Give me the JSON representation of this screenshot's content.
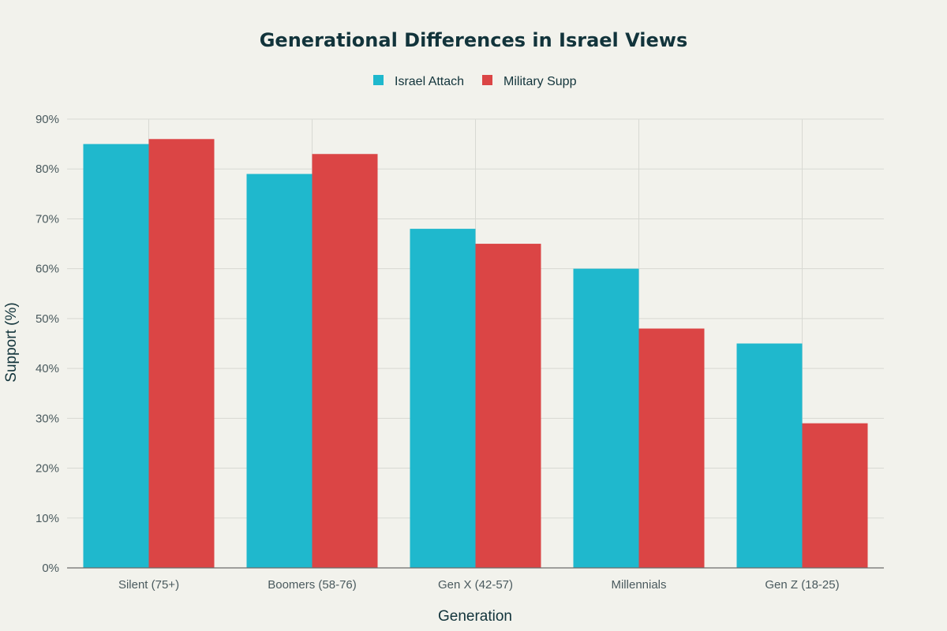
{
  "chart_data": {
    "type": "bar",
    "title": "Generational Differences in Israel Views",
    "xlabel": "Generation",
    "ylabel": "Support (%)",
    "categories": [
      "Silent (75+)",
      "Boomers (58-76)",
      "Gen X (42-57)",
      "Millennials",
      "Gen Z (18-25)"
    ],
    "series": [
      {
        "name": "Israel Attach",
        "color": "#1fb8cd",
        "values": [
          85,
          79,
          68,
          60,
          45
        ]
      },
      {
        "name": "Military Supp",
        "color": "#db4545",
        "values": [
          86,
          83,
          65,
          48,
          29
        ]
      }
    ],
    "ylim": [
      0,
      90
    ],
    "yticks": [
      "0%",
      "10%",
      "20%",
      "30%",
      "40%",
      "50%",
      "60%",
      "70%",
      "80%",
      "90%"
    ],
    "grid": true,
    "legend_position": "top-center"
  }
}
